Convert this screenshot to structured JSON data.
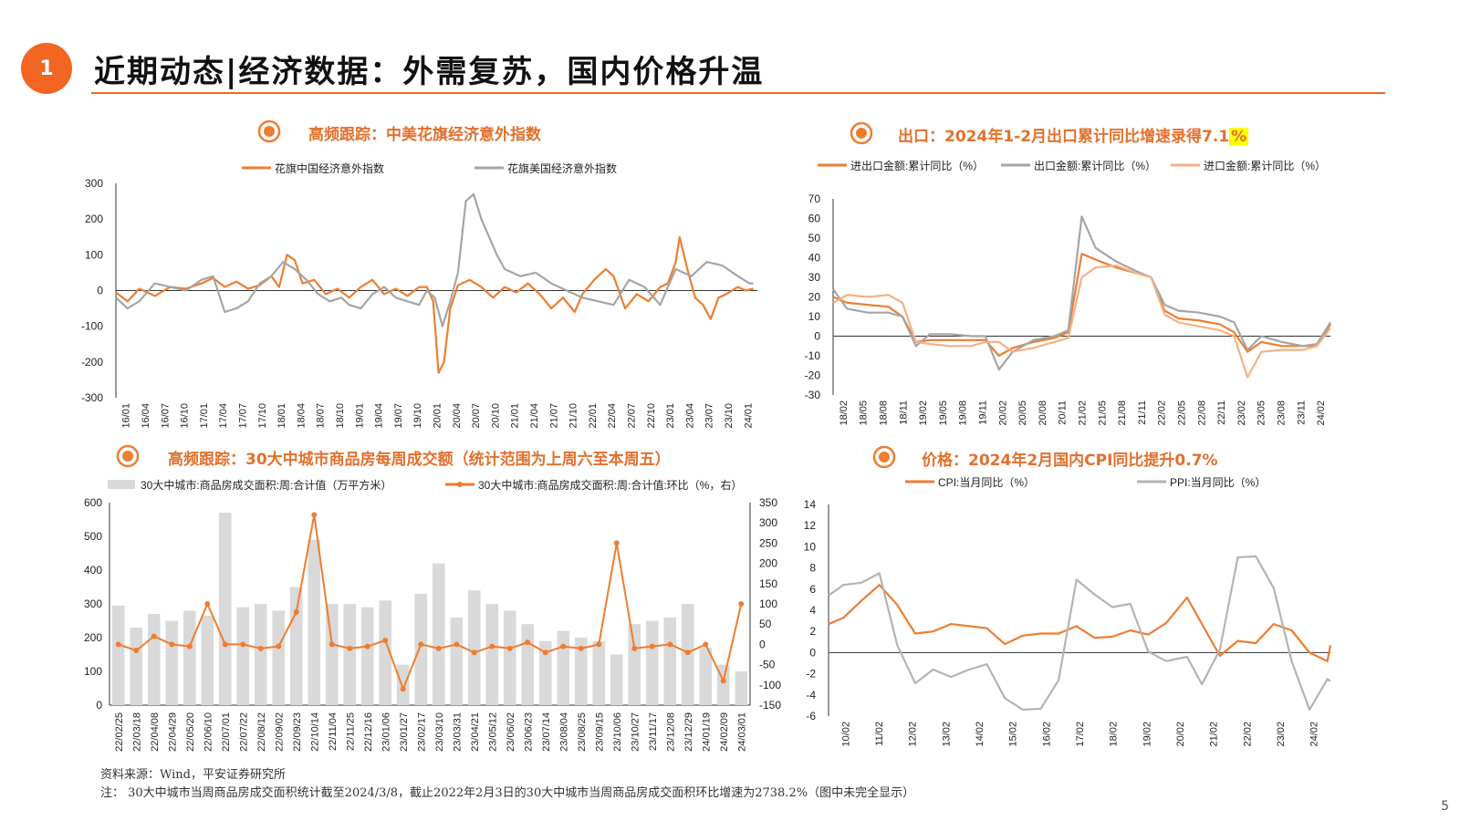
{
  "header": {
    "section_number": "1",
    "title": "近期动态|经济数据：外需复苏，国内价格升温"
  },
  "panels": {
    "citi": {
      "title": "高频跟踪：中美花旗经济意外指数",
      "legend": [
        "花旗中国经济意外指数",
        "花旗美国经济意外指数"
      ]
    },
    "export": {
      "title_main": "出口：2024年1-2月出口累计同比增速录得7.1",
      "title_hl": "%",
      "legend": [
        "进出口金额:累计同比（%）",
        "出口金额:累计同比（%）",
        "进口金额:累计同比（%）"
      ]
    },
    "housing": {
      "title": "高频跟踪：30大中城市商品房每周成交额（统计范围为上周六至本周五）",
      "legend": [
        "30大中城市:商品房成交面积:周:合计值（万平方米）",
        "30大中城市:商品房成交面积:周:合计值:环比（%，右）"
      ]
    },
    "price": {
      "title": "价格：2024年2月国内CPI同比提升0.7%",
      "legend": [
        "CPI:当月同比（%）",
        "PPI:当月同比（%）"
      ]
    }
  },
  "chart_data": [
    {
      "type": "line",
      "title": "高频跟踪：中美花旗经济意外指数",
      "ylim": [
        -300,
        300
      ],
      "yticks": [
        300,
        200,
        100,
        0,
        -100,
        -200,
        -300
      ],
      "x_tick_labels": [
        "16/01",
        "16/04",
        "16/07",
        "16/10",
        "17/01",
        "17/04",
        "17/07",
        "17/10",
        "18/01",
        "18/04",
        "18/07",
        "18/10",
        "19/01",
        "19/04",
        "19/07",
        "19/10",
        "20/01",
        "20/04",
        "20/07",
        "20/10",
        "21/01",
        "21/04",
        "21/07",
        "21/10",
        "22/01",
        "22/04",
        "22/07",
        "22/10",
        "23/01",
        "23/04",
        "23/07",
        "23/10",
        "24/01"
      ],
      "x_range": [
        2016.0,
        2024.25
      ],
      "series": [
        {
          "name": "花旗中国经济意外指数",
          "color": "#ed7d31",
          "x": [
            2016.0,
            2016.15,
            2016.3,
            2016.5,
            2016.7,
            2016.9,
            2017.1,
            2017.25,
            2017.4,
            2017.55,
            2017.7,
            2017.85,
            2018.0,
            2018.1,
            2018.2,
            2018.3,
            2018.4,
            2018.55,
            2018.7,
            2018.85,
            2019.0,
            2019.15,
            2019.3,
            2019.45,
            2019.6,
            2019.75,
            2019.9,
            2020.0,
            2020.08,
            2020.15,
            2020.22,
            2020.3,
            2020.4,
            2020.55,
            2020.7,
            2020.85,
            2021.0,
            2021.15,
            2021.3,
            2021.45,
            2021.6,
            2021.75,
            2021.9,
            2022.0,
            2022.15,
            2022.3,
            2022.4,
            2022.55,
            2022.7,
            2022.85,
            2023.0,
            2023.1,
            2023.2,
            2023.25,
            2023.35,
            2023.45,
            2023.55,
            2023.65,
            2023.75,
            2023.85,
            2024.0,
            2024.1,
            2024.2
          ],
          "y": [
            -5,
            -30,
            5,
            -15,
            10,
            5,
            20,
            35,
            10,
            25,
            5,
            15,
            40,
            10,
            100,
            85,
            20,
            30,
            -10,
            5,
            -20,
            10,
            30,
            -10,
            5,
            -15,
            10,
            10,
            -30,
            -230,
            -200,
            -50,
            15,
            30,
            10,
            -20,
            10,
            -5,
            20,
            -10,
            -50,
            -20,
            -60,
            -10,
            30,
            60,
            40,
            -50,
            -10,
            -30,
            10,
            20,
            80,
            150,
            60,
            -20,
            -40,
            -80,
            -20,
            -10,
            10,
            0,
            5
          ]
        },
        {
          "name": "花旗美国经济意外指数",
          "color": "#a5a5a5",
          "x": [
            2016.0,
            2016.15,
            2016.3,
            2016.5,
            2016.7,
            2016.9,
            2017.1,
            2017.25,
            2017.4,
            2017.55,
            2017.7,
            2017.85,
            2018.0,
            2018.15,
            2018.3,
            2018.45,
            2018.6,
            2018.75,
            2018.9,
            2019.0,
            2019.15,
            2019.3,
            2019.45,
            2019.6,
            2019.75,
            2019.9,
            2020.0,
            2020.1,
            2020.2,
            2020.3,
            2020.4,
            2020.5,
            2020.6,
            2020.7,
            2020.8,
            2020.9,
            2021.0,
            2021.2,
            2021.4,
            2021.6,
            2021.8,
            2022.0,
            2022.2,
            2022.4,
            2022.6,
            2022.8,
            2023.0,
            2023.2,
            2023.4,
            2023.6,
            2023.8,
            2024.0,
            2024.15,
            2024.2
          ],
          "y": [
            -20,
            -50,
            -30,
            20,
            10,
            0,
            30,
            40,
            -60,
            -50,
            -30,
            20,
            40,
            80,
            60,
            30,
            -10,
            -30,
            -20,
            -40,
            -50,
            -10,
            10,
            -20,
            -30,
            -40,
            0,
            -20,
            -100,
            -30,
            50,
            250,
            270,
            200,
            150,
            100,
            60,
            40,
            50,
            20,
            0,
            -20,
            -30,
            -40,
            30,
            10,
            -40,
            60,
            40,
            80,
            70,
            40,
            20,
            20
          ]
        }
      ]
    },
    {
      "type": "line",
      "title": "出口：2024年1-2月出口累计同比增速录得7.1%",
      "ylim": [
        -30,
        70
      ],
      "yticks": [
        70,
        60,
        50,
        40,
        30,
        20,
        10,
        0,
        -10,
        -20,
        -30
      ],
      "x_tick_labels": [
        "18/02",
        "18/05",
        "18/08",
        "18/11",
        "19/02",
        "19/05",
        "19/08",
        "19/11",
        "20/02",
        "20/05",
        "20/08",
        "20/11",
        "21/02",
        "21/05",
        "21/08",
        "21/11",
        "22/02",
        "22/05",
        "22/08",
        "22/11",
        "23/02",
        "23/05",
        "23/08",
        "23/11",
        "24/02"
      ],
      "x_range": [
        2018.083,
        2024.083
      ],
      "series": [
        {
          "name": "进出口金额:累计同比（%）",
          "color": "#ed7d31",
          "x": [
            2018.083,
            2018.25,
            2018.5,
            2018.75,
            2018.92,
            2019.083,
            2019.25,
            2019.5,
            2019.75,
            2019.92,
            2020.083,
            2020.25,
            2020.5,
            2020.75,
            2020.92,
            2021.083,
            2021.25,
            2021.5,
            2021.75,
            2021.92,
            2022.083,
            2022.25,
            2022.5,
            2022.75,
            2022.92,
            2023.083,
            2023.25,
            2023.5,
            2023.75,
            2023.92,
            2024.083
          ],
          "y": [
            20,
            17,
            16,
            15,
            10,
            -3,
            -2,
            -2,
            -2,
            -2,
            -10,
            -6,
            -3,
            -1,
            2,
            42,
            39,
            35,
            32,
            30,
            13,
            9,
            8,
            6,
            2,
            -8,
            -3,
            -5,
            -5,
            -5,
            6
          ]
        },
        {
          "name": "出口金额:累计同比（%）",
          "color": "#a5a5a5",
          "x": [
            2018.083,
            2018.25,
            2018.5,
            2018.75,
            2018.92,
            2019.083,
            2019.25,
            2019.5,
            2019.75,
            2019.92,
            2020.083,
            2020.25,
            2020.5,
            2020.75,
            2020.92,
            2021.083,
            2021.25,
            2021.5,
            2021.75,
            2021.92,
            2022.083,
            2022.25,
            2022.5,
            2022.75,
            2022.92,
            2023.083,
            2023.25,
            2023.5,
            2023.75,
            2023.92,
            2024.083
          ],
          "y": [
            24,
            14,
            12,
            12,
            10,
            -5,
            1,
            1,
            0,
            0,
            -17,
            -8,
            -2,
            0,
            3,
            61,
            45,
            38,
            33,
            30,
            16,
            13,
            12,
            10,
            7,
            -7,
            0,
            -3,
            -5,
            -4,
            7
          ]
        },
        {
          "name": "进口金额:累计同比（%）",
          "color": "#f4b183",
          "x": [
            2018.083,
            2018.25,
            2018.5,
            2018.75,
            2018.92,
            2019.083,
            2019.25,
            2019.5,
            2019.75,
            2019.92,
            2020.083,
            2020.25,
            2020.5,
            2020.75,
            2020.92,
            2021.083,
            2021.25,
            2021.5,
            2021.75,
            2021.92,
            2022.083,
            2022.25,
            2022.5,
            2022.75,
            2022.92,
            2023.083,
            2023.25,
            2023.5,
            2023.75,
            2023.92,
            2024.083
          ],
          "y": [
            17,
            21,
            20,
            21,
            17,
            -3,
            -4,
            -5,
            -5,
            -3,
            -3,
            -8,
            -6,
            -3,
            -1,
            30,
            35,
            36,
            32,
            30,
            11,
            7,
            5,
            3,
            0,
            -21,
            -8,
            -7,
            -7,
            -5,
            4
          ]
        }
      ]
    },
    {
      "type": "bar",
      "title": "高频跟踪：30大中城市商品房每周成交额（统计范围为上周六至本周五）",
      "ylim_left": [
        0,
        600
      ],
      "ylim_right": [
        -150,
        350
      ],
      "yticks_left": [
        600,
        500,
        400,
        300,
        200,
        100,
        0
      ],
      "yticks_right": [
        350,
        300,
        250,
        200,
        150,
        100,
        50,
        0,
        -50,
        -100,
        -150
      ],
      "categories": [
        "22/02/25",
        "22/03/18",
        "22/04/08",
        "22/04/29",
        "22/05/20",
        "22/06/10",
        "22/07/01",
        "22/07/22",
        "22/08/12",
        "22/09/02",
        "22/09/23",
        "22/10/14",
        "22/11/04",
        "22/11/25",
        "22/12/16",
        "23/01/06",
        "23/01/27",
        "23/02/17",
        "23/03/10",
        "23/03/31",
        "23/04/21",
        "23/05/12",
        "23/06/02",
        "23/06/23",
        "23/07/14",
        "23/08/04",
        "23/08/25",
        "23/09/15",
        "23/10/06",
        "23/10/27",
        "23/11/17",
        "23/12/08",
        "23/12/29",
        "24/01/19",
        "24/02/09",
        "24/03/01"
      ],
      "series": [
        {
          "name": "30大中城市:商品房成交面积:周:合计值（万平方米）",
          "color": "#d9d9d9",
          "axis": "left",
          "values": [
            295,
            230,
            270,
            250,
            280,
            265,
            570,
            290,
            300,
            280,
            350,
            490,
            300,
            300,
            290,
            310,
            120,
            330,
            420,
            260,
            340,
            300,
            280,
            240,
            190,
            220,
            200,
            190,
            150,
            240,
            250,
            260,
            300,
            170,
            120,
            100
          ]
        },
        {
          "name": "30大中城市:商品房成交面积:周:合计值:环比（%，右）",
          "color": "#ed7d31",
          "axis": "right",
          "values": [
            0,
            -15,
            20,
            0,
            -5,
            100,
            0,
            0,
            -10,
            -5,
            80,
            320,
            0,
            -10,
            -5,
            10,
            -110,
            0,
            -10,
            0,
            -20,
            -5,
            -10,
            5,
            -20,
            -5,
            -10,
            0,
            250,
            -10,
            -5,
            0,
            -20,
            0,
            -90,
            100
          ]
        }
      ]
    },
    {
      "type": "line",
      "title": "价格：2024年2月国内CPI同比提升0.7%",
      "ylim": [
        -6,
        14
      ],
      "yticks": [
        14,
        12,
        10,
        8,
        6,
        4,
        2,
        0,
        -2,
        -4,
        -6
      ],
      "x_tick_labels": [
        "10/02",
        "11/02",
        "12/02",
        "13/02",
        "14/02",
        "15/02",
        "16/02",
        "17/02",
        "18/02",
        "19/02",
        "20/02",
        "21/02",
        "22/02",
        "23/02",
        "24/02"
      ],
      "x_range": [
        2010.083,
        2024.083
      ],
      "series": [
        {
          "name": "CPI:当月同比（%）",
          "color": "#ed7d31",
          "x": [
            2010.083,
            2010.5,
            2011.0,
            2011.5,
            2012.0,
            2012.5,
            2013.0,
            2013.5,
            2014.0,
            2014.5,
            2015.0,
            2015.5,
            2016.0,
            2016.5,
            2017.0,
            2017.5,
            2018.0,
            2018.5,
            2019.0,
            2019.5,
            2020.083,
            2020.5,
            2021.0,
            2021.5,
            2022.0,
            2022.5,
            2023.0,
            2023.5,
            2024.0,
            2024.083
          ],
          "y": [
            2.7,
            3.3,
            4.9,
            6.4,
            4.5,
            1.8,
            2.0,
            2.7,
            2.5,
            2.3,
            0.8,
            1.6,
            1.8,
            1.8,
            2.5,
            1.4,
            1.5,
            2.1,
            1.7,
            2.8,
            5.2,
            2.7,
            -0.3,
            1.1,
            0.9,
            2.7,
            2.1,
            0.0,
            -0.8,
            0.7
          ]
        },
        {
          "name": "PPI:当月同比（%）",
          "color": "#b4b4b4",
          "x": [
            2010.083,
            2010.5,
            2011.0,
            2011.5,
            2012.0,
            2012.5,
            2013.0,
            2013.5,
            2014.0,
            2014.5,
            2015.0,
            2015.5,
            2016.0,
            2016.5,
            2017.0,
            2017.5,
            2018.0,
            2018.5,
            2019.0,
            2019.5,
            2020.083,
            2020.5,
            2021.0,
            2021.5,
            2022.0,
            2022.5,
            2023.0,
            2023.5,
            2024.0,
            2024.083
          ],
          "y": [
            5.4,
            6.4,
            6.6,
            7.5,
            0.7,
            -2.9,
            -1.6,
            -2.3,
            -1.6,
            -1.1,
            -4.3,
            -5.4,
            -5.3,
            -2.6,
            6.9,
            5.5,
            4.3,
            4.6,
            0.1,
            -0.8,
            -0.4,
            -3.0,
            0.3,
            9.0,
            9.1,
            6.1,
            -0.8,
            -5.4,
            -2.5,
            -2.7
          ]
        }
      ]
    }
  ],
  "footer": {
    "source": "资料来源：Wind，平安证券研究所",
    "note": "注：  30大中城市当周商品房成交面积统计截至2024/3/8，截止2022年2月3日的30大中城市当周商品房成交面积环比增速为2738.2%（图中未完全显示）",
    "page": "5"
  }
}
